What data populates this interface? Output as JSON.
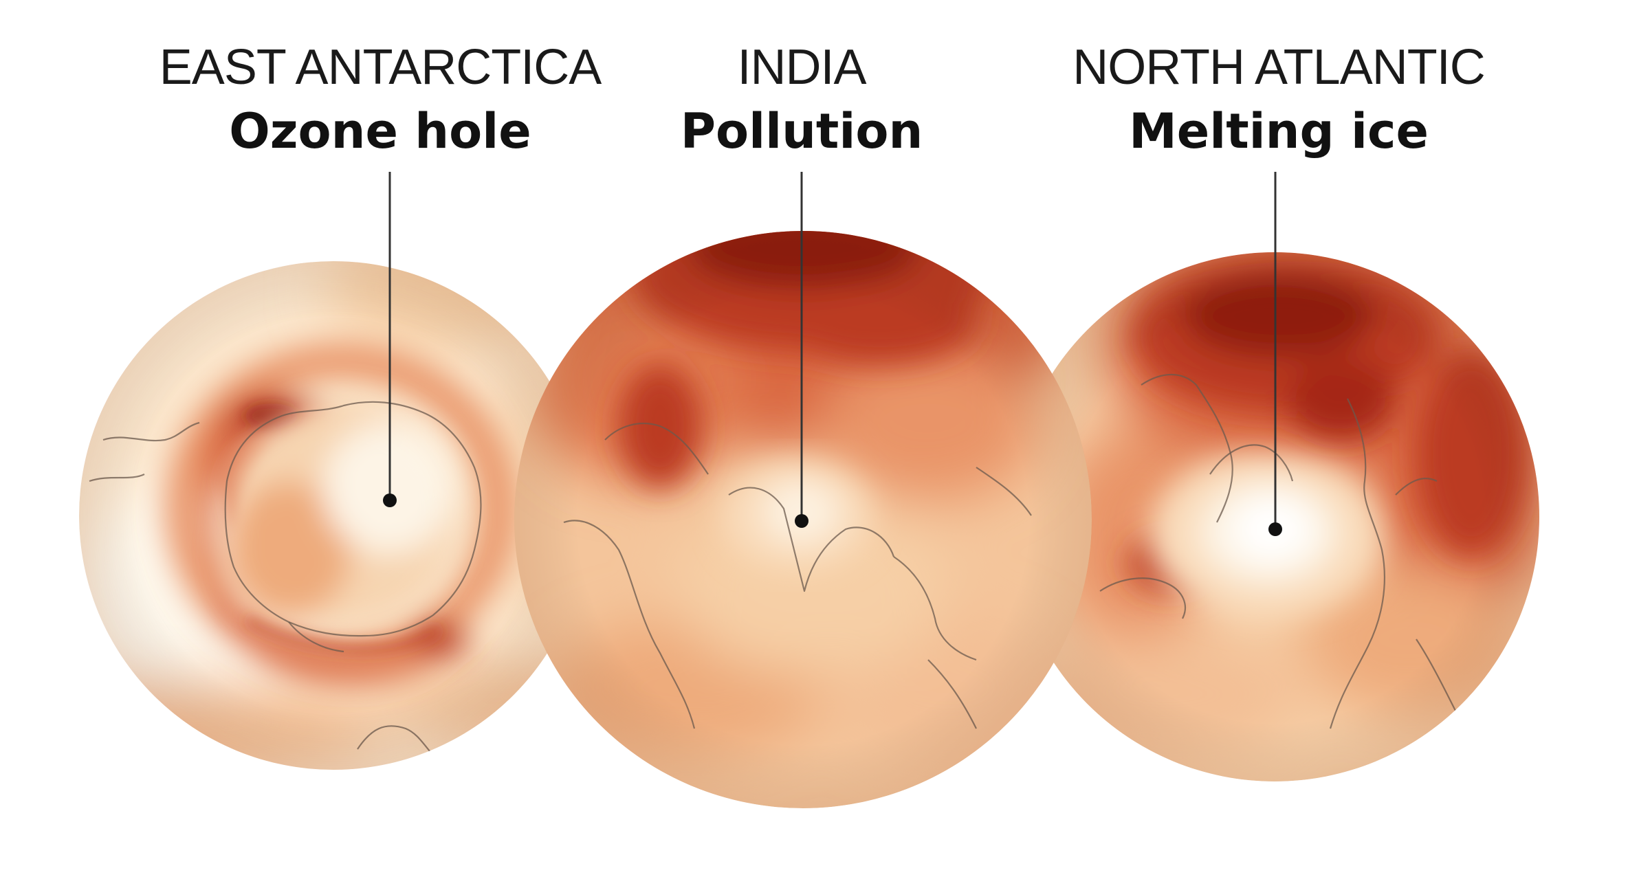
{
  "colors": {
    "background": "#ffffff",
    "scale": [
      "#fdf3e1",
      "#f9dcbb",
      "#f3bf95",
      "#e99467",
      "#d9663f",
      "#bb3a24",
      "#8f1a10"
    ]
  },
  "panels": [
    {
      "region": "EAST ANTARCTICA",
      "topic": "Ozone hole",
      "projection": "south-polar"
    },
    {
      "region": "INDIA",
      "topic": "Pollution",
      "projection": "asia"
    },
    {
      "region": "NORTH ATLANTIC",
      "topic": "Melting ice",
      "projection": "north-polar"
    }
  ]
}
